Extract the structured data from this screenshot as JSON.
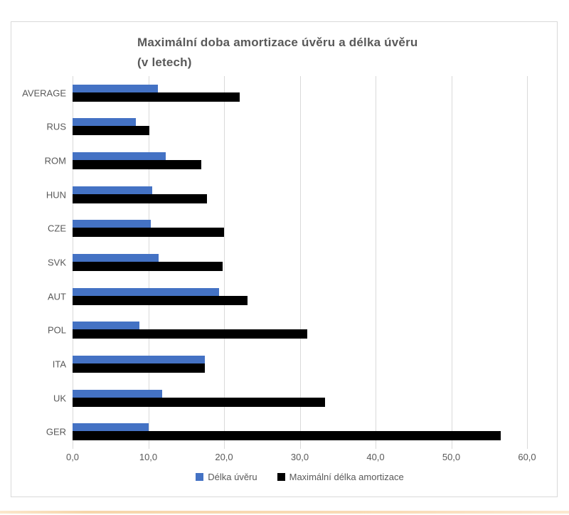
{
  "page": {
    "background": "#ffffff",
    "accent_strip_color": "#f8dcb8"
  },
  "chart": {
    "title_line1": "Maximální doba amortizace úvěru a délka úvěru",
    "title_line2": "(v letech)",
    "border_color": "#d9d9d9",
    "gridline_color": "#d9d9d9",
    "text_color": "#595959"
  },
  "chart_data": {
    "type": "bar",
    "orientation": "horizontal",
    "title": "Maximální doba amortizace úvěru a délka úvěru (v letech)",
    "categories": [
      "AVERAGE",
      "RUS",
      "ROM",
      "HUN",
      "CZE",
      "SVK",
      "AUT",
      "POL",
      "ITA",
      "UK",
      "GER"
    ],
    "categories_order": "top to bottom",
    "series": [
      {
        "name": "Délka úvěru",
        "color": "#4472C4",
        "values": [
          11.3,
          8.4,
          12.3,
          10.5,
          10.3,
          11.4,
          19.3,
          8.8,
          17.5,
          11.8,
          10.0
        ]
      },
      {
        "name": "Maximální délka amortizace",
        "color": "#000000",
        "values": [
          22.1,
          10.1,
          17.0,
          17.7,
          20.0,
          19.8,
          23.1,
          31.0,
          17.5,
          33.3,
          56.5
        ]
      }
    ],
    "xlim": [
      0,
      60
    ],
    "x_tick_labels": [
      "0,0",
      "10,0",
      "20,0",
      "30,0",
      "40,0",
      "50,0",
      "60,0"
    ],
    "grid": true,
    "legend_position": "bottom"
  }
}
